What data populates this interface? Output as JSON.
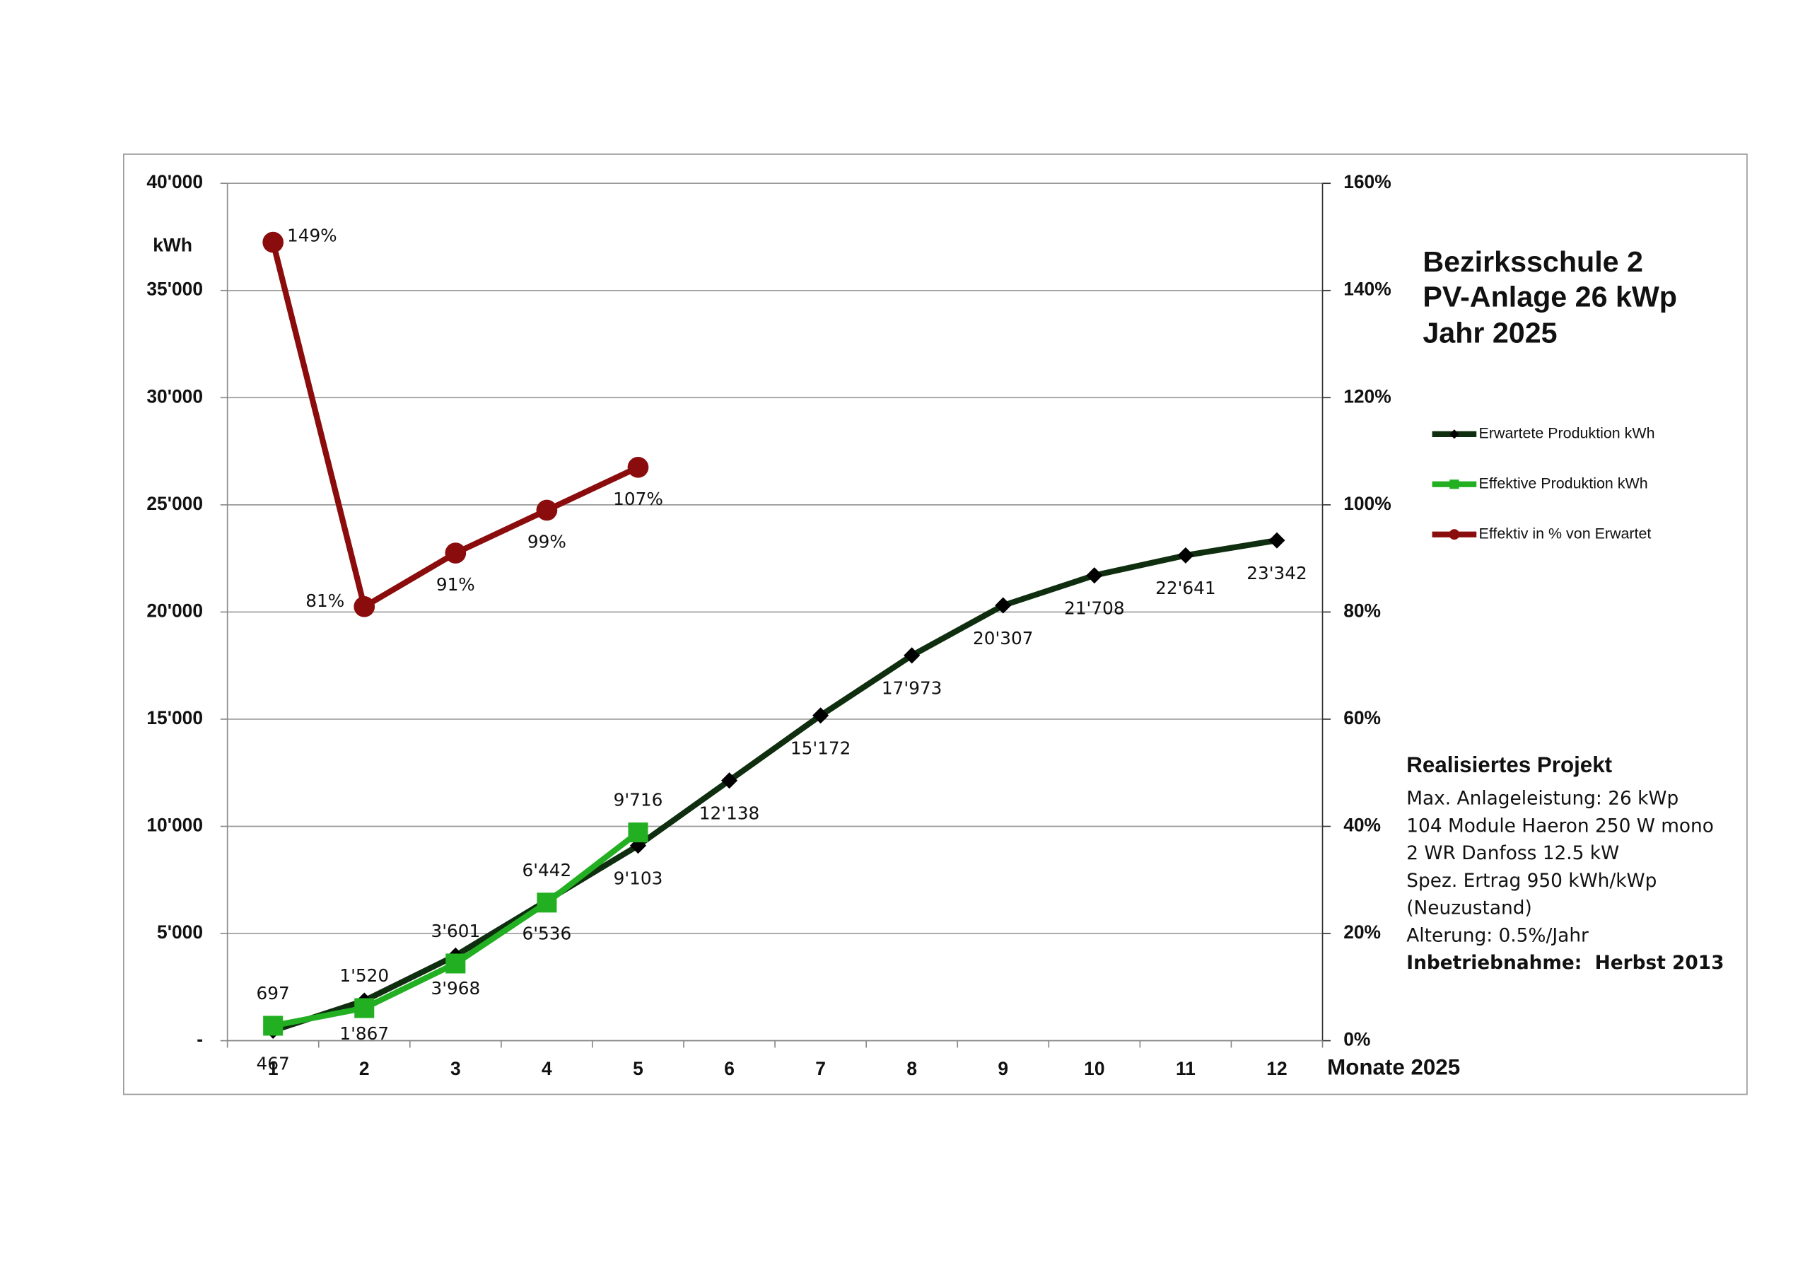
{
  "chart_data": {
    "type": "line",
    "title": [
      "Bezirksschule 2",
      "PV-Anlage 26 kWp",
      "Jahr 2025"
    ],
    "y_label": "kWh",
    "x_label": "Monate 2025",
    "categories": [
      1,
      2,
      3,
      4,
      5,
      6,
      7,
      8,
      9,
      10,
      11,
      12
    ],
    "ylim": [
      0,
      40000
    ],
    "yticks": [
      {
        "value": 0,
        "label": "-"
      },
      {
        "value": 5000,
        "label": "5'000"
      },
      {
        "value": 10000,
        "label": "10'000"
      },
      {
        "value": 15000,
        "label": "15'000"
      },
      {
        "value": 20000,
        "label": "20'000"
      },
      {
        "value": 25000,
        "label": "25'000"
      },
      {
        "value": 30000,
        "label": "30'000"
      },
      {
        "value": 35000,
        "label": "35'000"
      },
      {
        "value": 40000,
        "label": "40'000"
      }
    ],
    "y2lim": [
      0,
      160
    ],
    "y2ticks": [
      {
        "value": 0,
        "label": "0%"
      },
      {
        "value": 20,
        "label": "20%"
      },
      {
        "value": 40,
        "label": "40%"
      },
      {
        "value": 60,
        "label": "60%"
      },
      {
        "value": 80,
        "label": "80%"
      },
      {
        "value": 100,
        "label": "100%"
      },
      {
        "value": 120,
        "label": "120%"
      },
      {
        "value": 140,
        "label": "140%"
      },
      {
        "value": 160,
        "label": "160%"
      }
    ],
    "grid": true,
    "legend": "right",
    "series": [
      {
        "name": "Erwartete Produktion kWh",
        "color": "#0f2e0f",
        "marker": "diamond",
        "values": [
          467,
          1867,
          3968,
          6536,
          9103,
          12138,
          15172,
          17973,
          20307,
          21708,
          22641,
          23342
        ],
        "value_labels": [
          "467",
          "1'867",
          "3'968",
          "6'536",
          "9'103",
          "12'138",
          "15'172",
          "17'973",
          "20'307",
          "21'708",
          "22'641",
          "23'342"
        ]
      },
      {
        "name": "Effektive Produktion kWh",
        "color": "#22b022",
        "marker": "square",
        "values": [
          697,
          1520,
          3601,
          6442,
          9716,
          null,
          null,
          null,
          null,
          null,
          null,
          null
        ],
        "value_labels": [
          "697",
          "1'520",
          "3'601",
          "6'442",
          "9'716",
          null,
          null,
          null,
          null,
          null,
          null,
          null
        ]
      },
      {
        "name": "Effektiv in % von Erwartet",
        "color": "#8b0c0c",
        "marker": "circle",
        "axis": "y2",
        "values": [
          149,
          81,
          91,
          99,
          107,
          null,
          null,
          null,
          null,
          null,
          null,
          null
        ],
        "value_labels": [
          "149%",
          "81%",
          "91%",
          "99%",
          "107%",
          null,
          null,
          null,
          null,
          null,
          null,
          null
        ]
      }
    ]
  },
  "project": {
    "title": "Realisiertes Projekt",
    "lines": [
      "Max. Anlageleistung: 26 kWp",
      "104 Module Haeron 250 W mono",
      "2 WR Danfoss 12.5 kW",
      "Spez. Ertrag 950 kWh/kWp",
      "(Neuzustand)",
      "Alterung: 0.5%/Jahr"
    ],
    "footer": "Inbetriebnahme:  Herbst 2013"
  }
}
